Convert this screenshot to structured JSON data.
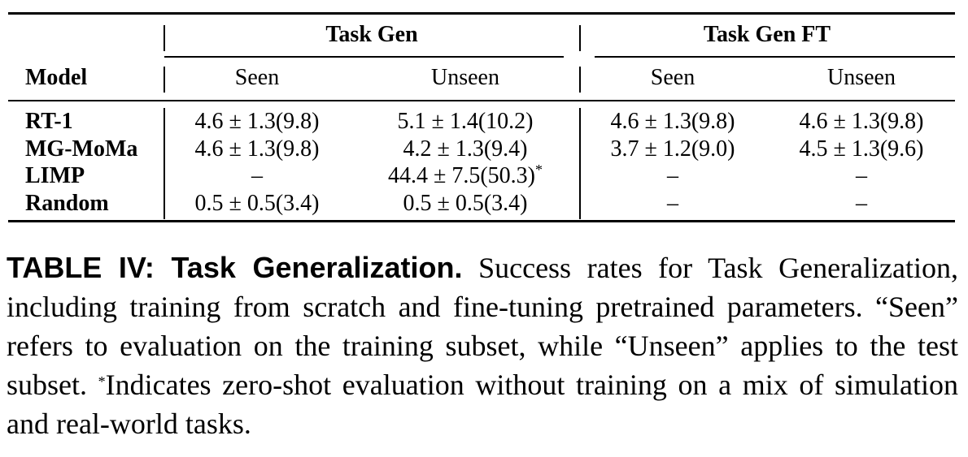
{
  "table": {
    "group_headers": [
      "Task Gen",
      "Task Gen FT"
    ],
    "model_header": "Model",
    "sub_headers": [
      "Seen",
      "Unseen",
      "Seen",
      "Unseen"
    ],
    "rows": [
      {
        "model": "RT-1",
        "cells": [
          "4.6 ± 1.3(9.8)",
          "5.1 ± 1.4(10.2)",
          "4.6 ± 1.3(9.8)",
          "4.6 ± 1.3(9.8)"
        ]
      },
      {
        "model": "MG-MoMa",
        "cells": [
          "4.6 ± 1.3(9.8)",
          "4.2 ± 1.3(9.4)",
          "3.7 ± 1.2(9.0)",
          "4.5 ± 1.3(9.6)"
        ]
      },
      {
        "model": "LIMP",
        "cells": [
          "–",
          "44.4 ± 7.5(50.3)",
          "–",
          "–"
        ],
        "limp_unseen_mark": "*"
      },
      {
        "model": "Random",
        "cells": [
          "0.5 ± 0.5(3.4)",
          "0.5 ± 0.5(3.4)",
          "–",
          "–"
        ]
      }
    ]
  },
  "caption": {
    "label": "TABLE IV: Task Generalization.",
    "text_a": " Success rates for Task Generalization, including training from scratch and fine-tuning pretrained parameters. “Seen” refers to evaluation on the training subset, while “Unseen” applies to the test subset. ",
    "mark": "*",
    "text_b": "Indicates zero-shot evaluation without training on a mix of simulation and real-world tasks."
  }
}
